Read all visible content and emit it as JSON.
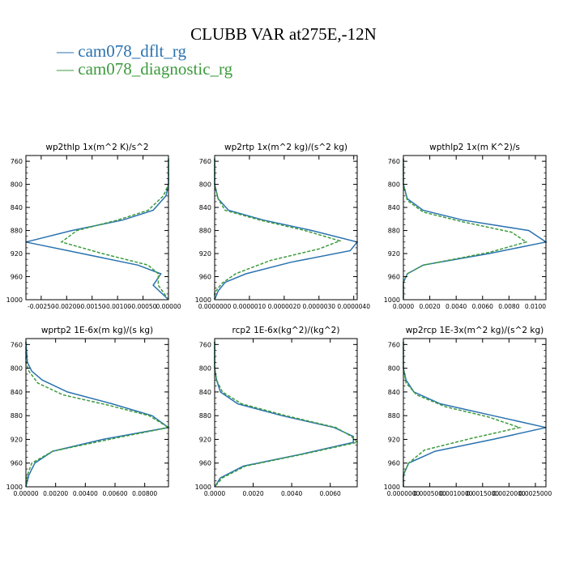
{
  "title": "CLUBB VAR at275E,-12N",
  "legend": [
    {
      "label": "— cam078_dflt_rg",
      "color": "#2a72b0"
    },
    {
      "label": "— cam078_diagnostic_rg",
      "color": "#3c9b3c"
    }
  ],
  "colors": {
    "dflt": "#2a72b0",
    "diag": "#3c9b3c"
  },
  "chart_data": [
    {
      "type": "line",
      "title": "wp2thlp  1x(m^2 K)/s^2",
      "xlim": [
        -0.0028,
        0.0
      ],
      "ylim": [
        1000,
        750
      ],
      "x_ticks": [
        -0.0025,
        -0.002,
        -0.0015,
        -0.001,
        -0.0005,
        0.0
      ],
      "x_tick_labels": [
        "-0.00250",
        "-0.00200",
        "-0.00150",
        "-0.00100",
        "-0.00050",
        "0.00000"
      ],
      "y_ticks": [
        760,
        800,
        840,
        880,
        920,
        960,
        1000
      ],
      "series": [
        {
          "name": "cam078_dflt_rg",
          "y": [
            755,
            780,
            800,
            820,
            845,
            862,
            880,
            900,
            920,
            940,
            955,
            975,
            1000
          ],
          "x": [
            0.0,
            0.0,
            0.0,
            -5e-05,
            -0.0003,
            -0.0009,
            -0.0019,
            -0.0028,
            -0.0017,
            -0.0006,
            -0.00015,
            -0.0003,
            0.0
          ]
        },
        {
          "name": "cam078_diagnostic_rg",
          "y": [
            755,
            780,
            800,
            820,
            845,
            862,
            880,
            900,
            920,
            940,
            955,
            975,
            1000
          ],
          "x": [
            0.0,
            0.0,
            0.0,
            -0.0001,
            -0.0004,
            -0.001,
            -0.0018,
            -0.0021,
            -0.0013,
            -0.0004,
            -0.0002,
            -0.0002,
            0.0
          ]
        }
      ]
    },
    {
      "type": "line",
      "title": "wp2rtp  1x(m^2 kg)/(s^2 kg)",
      "xlim": [
        0.0,
        4.1e-06
      ],
      "ylim": [
        1000,
        750
      ],
      "x_ticks": [
        0.0,
        1e-06,
        2e-06,
        3e-06,
        4e-06
      ],
      "x_tick_labels": [
        "0.0000000",
        "0.0000010",
        "0.0000020",
        "0.0000030",
        "0.0000040"
      ],
      "y_ticks": [
        760,
        800,
        840,
        880,
        920,
        960,
        1000
      ],
      "series": [
        {
          "name": "cam078_dflt_rg",
          "y": [
            755,
            800,
            825,
            845,
            862,
            880,
            900,
            915,
            935,
            955,
            970,
            985,
            1000
          ],
          "x": [
            0.0,
            0.0,
            1e-07,
            4e-07,
            1.4e-06,
            2.8e-06,
            4.1e-06,
            3.9e-06,
            2.2e-06,
            9e-07,
            3e-07,
            1e-07,
            0.0
          ]
        },
        {
          "name": "cam078_diagnostic_rg",
          "y": [
            755,
            800,
            825,
            845,
            862,
            880,
            898,
            912,
            932,
            955,
            972,
            988,
            1000
          ],
          "x": [
            0.0,
            0.0,
            1e-07,
            3e-07,
            1.3e-06,
            2.6e-06,
            3.6e-06,
            3e-06,
            1.6e-06,
            6e-07,
            2e-07,
            0.0,
            0.0
          ]
        }
      ]
    },
    {
      "type": "line",
      "title": "wpthlp2  1x(m K^2)/s",
      "xlim": [
        0.0,
        0.0108
      ],
      "ylim": [
        1000,
        750
      ],
      "x_ticks": [
        0.0,
        0.002,
        0.004,
        0.006,
        0.008,
        0.01
      ],
      "x_tick_labels": [
        "0.0000",
        "0.0020",
        "0.0040",
        "0.0060",
        "0.0080",
        "0.0100"
      ],
      "y_ticks": [
        760,
        800,
        840,
        880,
        920,
        960,
        1000
      ],
      "series": [
        {
          "name": "cam078_dflt_rg",
          "y": [
            755,
            800,
            825,
            845,
            862,
            880,
            900,
            920,
            940,
            955,
            970,
            985,
            1000
          ],
          "x": [
            0.0,
            0.0,
            0.0003,
            0.0015,
            0.0045,
            0.0095,
            0.0108,
            0.0065,
            0.0015,
            0.0003,
            0.0,
            0.0,
            0.0
          ]
        },
        {
          "name": "cam078_diagnostic_rg",
          "y": [
            755,
            800,
            828,
            848,
            865,
            883,
            900,
            918,
            940,
            955,
            970,
            985,
            1000
          ],
          "x": [
            0.0,
            0.0,
            0.0003,
            0.0015,
            0.0045,
            0.0082,
            0.0093,
            0.0065,
            0.0015,
            0.0003,
            0.0,
            0.0,
            0.0
          ]
        }
      ]
    },
    {
      "type": "line",
      "title": "wprtp2  1E-6x(m kg)/(s kg)",
      "xlim": [
        0.0,
        0.0096
      ],
      "ylim": [
        1000,
        750
      ],
      "x_ticks": [
        0.0,
        0.002,
        0.004,
        0.006,
        0.008
      ],
      "x_tick_labels": [
        "0.00000",
        "0.00200",
        "0.00400",
        "0.00600",
        "0.00800"
      ],
      "y_ticks": [
        760,
        800,
        840,
        880,
        920,
        960,
        1000
      ],
      "series": [
        {
          "name": "cam078_dflt_rg",
          "y": [
            755,
            790,
            805,
            820,
            840,
            860,
            880,
            900,
            920,
            940,
            960,
            980,
            1000
          ],
          "x": [
            0.0,
            0.0001,
            0.0004,
            0.0011,
            0.0028,
            0.0058,
            0.0085,
            0.0096,
            0.0052,
            0.0018,
            0.0006,
            0.0002,
            0.0
          ]
        },
        {
          "name": "cam078_diagnostic_rg",
          "y": [
            755,
            790,
            805,
            825,
            845,
            862,
            880,
            900,
            918,
            940,
            960,
            980,
            1000
          ],
          "x": [
            0.0,
            0.0,
            0.0002,
            0.0008,
            0.0025,
            0.0055,
            0.0083,
            0.0096,
            0.006,
            0.0018,
            0.0004,
            0.0001,
            0.0
          ]
        }
      ]
    },
    {
      "type": "line",
      "title": "rcp2  1E-6x(kg^2)/(kg^2)",
      "xlim": [
        0.0,
        0.0074
      ],
      "ylim": [
        1000,
        750
      ],
      "x_ticks": [
        0.0,
        0.002,
        0.004,
        0.006
      ],
      "x_tick_labels": [
        "0.0000",
        "0.0020",
        "0.0040",
        "0.0060"
      ],
      "y_ticks": [
        760,
        800,
        840,
        880,
        920,
        960,
        1000
      ],
      "series": [
        {
          "name": "cam078_dflt_rg",
          "y": [
            755,
            800,
            820,
            840,
            860,
            880,
            900,
            915,
            925,
            945,
            965,
            985,
            1000
          ],
          "x": [
            0.0,
            0.0,
            0.0001,
            0.0003,
            0.0012,
            0.0035,
            0.0062,
            0.0072,
            0.0072,
            0.0045,
            0.0015,
            0.0003,
            0.0
          ]
        },
        {
          "name": "cam078_diagnostic_rg",
          "y": [
            755,
            800,
            820,
            840,
            860,
            880,
            900,
            915,
            925,
            945,
            965,
            985,
            1000
          ],
          "x": [
            0.0,
            0.0,
            0.0001,
            0.0004,
            0.0014,
            0.0037,
            0.0063,
            0.0071,
            0.0074,
            0.0046,
            0.0016,
            0.0004,
            0.0
          ]
        }
      ]
    },
    {
      "type": "line",
      "title": "wp2rcp  1E-3x(m^2 kg)/(s^2 kg)",
      "xlim": [
        0.0,
        0.0027
      ],
      "ylim": [
        1000,
        750
      ],
      "x_ticks": [
        0.0,
        0.0005,
        0.001,
        0.0015,
        0.002,
        0.0025
      ],
      "x_tick_labels": [
        "0.0000000",
        "0.0005000",
        "0.0010000",
        "0.0015000",
        "0.0020000",
        "0.0025000"
      ],
      "y_ticks": [
        760,
        800,
        840,
        880,
        920,
        960,
        1000
      ],
      "series": [
        {
          "name": "cam078_dflt_rg",
          "y": [
            755,
            800,
            820,
            840,
            860,
            880,
            900,
            920,
            940,
            960,
            980,
            1000
          ],
          "x": [
            0.0,
            0.0,
            5e-05,
            0.0002,
            0.0007,
            0.0017,
            0.0027,
            0.0017,
            0.0006,
            0.0001,
            0.0,
            0.0
          ]
        },
        {
          "name": "cam078_diagnostic_rg",
          "y": [
            755,
            800,
            825,
            845,
            865,
            882,
            900,
            918,
            938,
            960,
            980,
            1000
          ],
          "x": [
            0.0,
            0.0,
            5e-05,
            0.00025,
            0.0008,
            0.0016,
            0.0022,
            0.0013,
            0.0004,
            0.0001,
            0.0,
            0.0
          ]
        }
      ]
    }
  ]
}
